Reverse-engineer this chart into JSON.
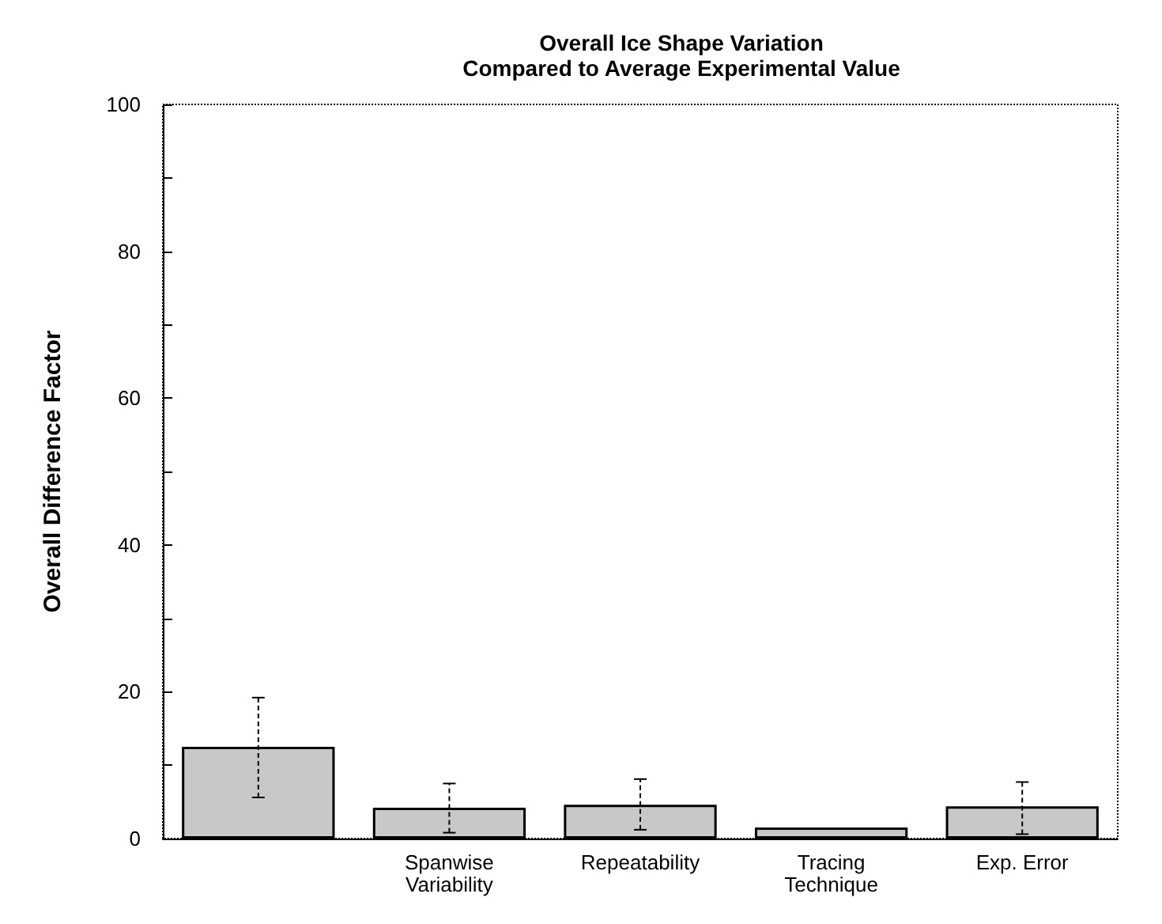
{
  "chart_data": {
    "type": "bar",
    "title": "Overall Ice Shape Variation\nCompared to Average Experimental Value",
    "ylabel": "Overall Difference Factor",
    "categories": [
      null,
      "Spanwise\nVariability",
      "Repeatability",
      "Tracing\nTechnique",
      "Exp. Error"
    ],
    "values": [
      12.5,
      4.2,
      4.6,
      1.5,
      4.4
    ],
    "errors": [
      [
        5.6,
        19.2
      ],
      [
        0.8,
        7.5
      ],
      [
        1.2,
        8.1
      ],
      null,
      [
        0.6,
        7.7
      ]
    ],
    "color": "#c8c8c8",
    "ylim": [
      0,
      100
    ],
    "yticks": [
      0,
      {
        "value": 10,
        "label": null
      },
      20,
      {
        "value": 30,
        "label": null
      },
      40,
      {
        "value": 50,
        "label": null
      },
      60,
      {
        "value": 70,
        "label": null
      },
      80,
      {
        "value": 90,
        "label": null
      },
      100
    ],
    "grid": false
  }
}
